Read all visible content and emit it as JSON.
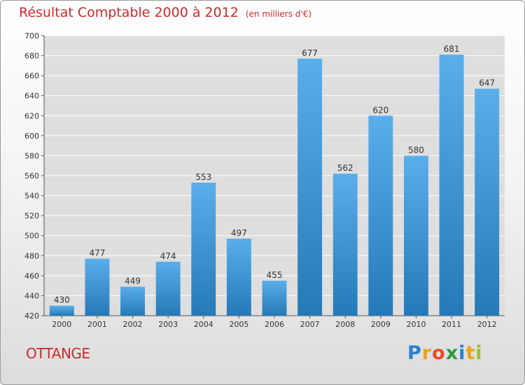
{
  "header": {
    "title": "Résultat Comptable 2000 à 2012",
    "subtitle": "(en milliers d'€)"
  },
  "footer": {
    "city": "OTTANGE",
    "logo": {
      "letters": [
        "P",
        "r",
        "o",
        "x",
        "i",
        "t",
        "i"
      ],
      "colors": [
        "#2a7fd0",
        "#e8a317",
        "#e84b2a",
        "#2a9a3a",
        "#2a7fd0",
        "#e8a317",
        "#9ac22a"
      ]
    }
  },
  "chart_data": {
    "type": "bar",
    "title": "Résultat Comptable 2000 à 2012",
    "subtitle": "(en milliers d'€)",
    "categories": [
      "2000",
      "2001",
      "2002",
      "2003",
      "2004",
      "2005",
      "2006",
      "2007",
      "2008",
      "2009",
      "2010",
      "2011",
      "2012"
    ],
    "values": [
      430,
      477,
      449,
      474,
      553,
      497,
      455,
      677,
      562,
      620,
      580,
      681,
      647
    ],
    "ylim": [
      420,
      700
    ],
    "yticks": [
      420,
      440,
      460,
      480,
      500,
      520,
      540,
      560,
      580,
      600,
      620,
      640,
      660,
      680,
      700
    ],
    "grid": true,
    "colors": {
      "bar_top": "#5aaeea",
      "bar_bottom": "#2479b8",
      "grid": "#ffffff"
    }
  }
}
